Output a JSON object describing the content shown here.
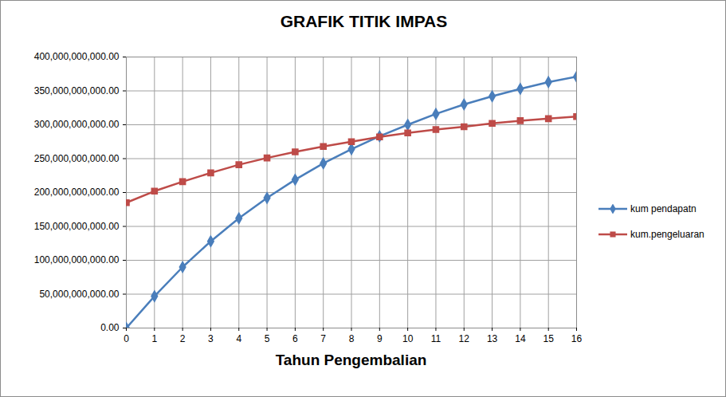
{
  "chart_data": {
    "type": "line",
    "title": "GRAFIK TITIK IMPAS",
    "x_label": "Tahun Pengembalian",
    "x": [
      0,
      1,
      2,
      3,
      4,
      5,
      6,
      7,
      8,
      9,
      10,
      11,
      12,
      13,
      14,
      15,
      16
    ],
    "series": [
      {
        "name": "kum pendapatn",
        "color": "#4a7ebb",
        "marker": "diamond",
        "values": [
          0,
          47000000000,
          90000000000,
          128000000000,
          162000000000,
          192000000000,
          219000000000,
          243000000000,
          264000000000,
          283000000000,
          300000000000,
          316000000000,
          330000000000,
          342000000000,
          353000000000,
          363000000000,
          371000000000
        ]
      },
      {
        "name": "kum.pengeluaran",
        "color": "#be4b48",
        "marker": "square",
        "values": [
          185000000000,
          202000000000,
          216000000000,
          229000000000,
          241000000000,
          251000000000,
          260000000000,
          268000000000,
          275000000000,
          282000000000,
          288000000000,
          293000000000,
          297000000000,
          302000000000,
          306000000000,
          309000000000,
          312000000000
        ]
      }
    ],
    "xlim": [
      0,
      16
    ],
    "xticks": [
      0,
      1,
      2,
      3,
      4,
      5,
      6,
      7,
      8,
      9,
      10,
      11,
      12,
      13,
      14,
      15,
      16
    ],
    "ylim": [
      0,
      400000000000
    ],
    "yticks": [
      {
        "value": 0,
        "label": "0.00"
      },
      {
        "value": 50000000000,
        "label": "50,000,000,000.00"
      },
      {
        "value": 100000000000,
        "label": "100,000,000,000.00"
      },
      {
        "value": 150000000000,
        "label": "150,000,000,000.00"
      },
      {
        "value": 200000000000,
        "label": "200,000,000,000.00"
      },
      {
        "value": 250000000000,
        "label": "250,000,000,000.00"
      },
      {
        "value": 300000000000,
        "label": "300,000,000,000.00"
      },
      {
        "value": 350000000000,
        "label": "350,000,000,000.00"
      },
      {
        "value": 400000000000,
        "label": "400,000,000,000.00"
      }
    ],
    "grid": true,
    "legend": "right"
  }
}
